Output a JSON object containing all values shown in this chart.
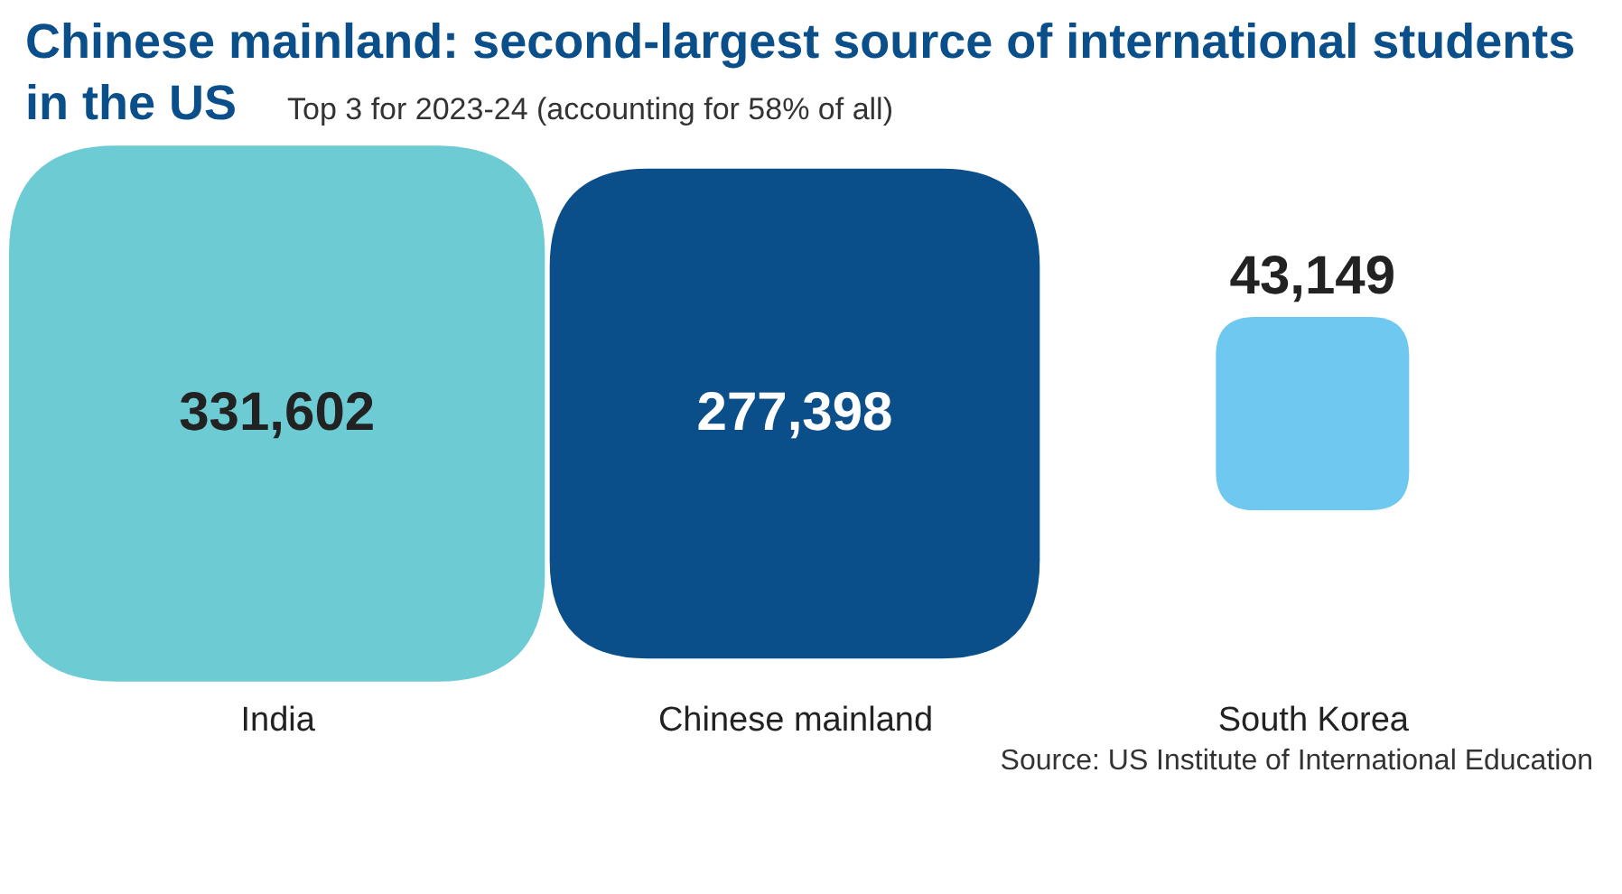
{
  "chart_data": {
    "type": "other",
    "title": "Chinese mainland: second-largest source of international students in the US",
    "subtitle": "Top 3 for 2023-24 (accounting for 58% of all)",
    "categories": [
      "India",
      "Chinese mainland",
      "South Korea"
    ],
    "values": [
      331602,
      277398,
      43149
    ],
    "colors": [
      "#6ccbd3",
      "#0b4f8a",
      "#6fc8ef"
    ],
    "value_labels": [
      "331,602",
      "277,398",
      "43,149"
    ],
    "annotations": [
      "Source: US Institute of International Education"
    ]
  }
}
